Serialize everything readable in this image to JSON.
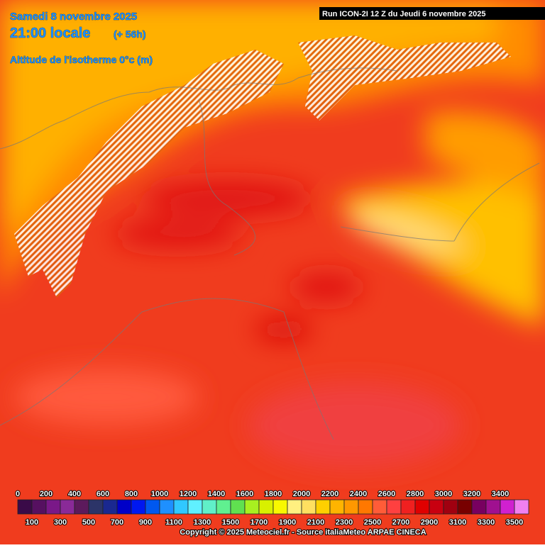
{
  "header": {
    "date": "Samedi 8 novembre 2025",
    "time": "21:00 locale",
    "lead": "(+ 56h)",
    "parameter": "Altitude de l'isotherme 0°c (m)"
  },
  "run": "Run ICON-2I 12 Z du Jeudi 6 novembre 2025",
  "legend": {
    "labels_top": [
      0,
      200,
      400,
      600,
      800,
      1000,
      1200,
      1400,
      1600,
      1800,
      2000,
      2200,
      2400,
      2600,
      2800,
      3000,
      3200,
      3400
    ],
    "labels_bottom": [
      100,
      300,
      500,
      700,
      900,
      1100,
      1300,
      1500,
      1700,
      1900,
      2100,
      2300,
      2500,
      2700,
      2900,
      3100,
      3300,
      3500
    ],
    "colors": [
      "#3a0a48",
      "#561060",
      "#7a1888",
      "#8a2a98",
      "#5c1a5c",
      "#2c3468",
      "#1a2890",
      "#0000c8",
      "#0018f0",
      "#0058f0",
      "#1e90ff",
      "#30c8ff",
      "#60f0ff",
      "#60f0c8",
      "#60f090",
      "#60e050",
      "#a8f020",
      "#d8f000",
      "#f8f800",
      "#fff080",
      "#ffe060",
      "#ffd000",
      "#ffb400",
      "#ff9800",
      "#ff7800",
      "#ff5c38",
      "#ff4040",
      "#f02020",
      "#e00000",
      "#c80010",
      "#a00010",
      "#780000",
      "#780060",
      "#a01090",
      "#d020d0",
      "#f080f0"
    ]
  },
  "copyright": "Copyright © 2025 Meteociel.fr - Source italiaMeteo ARPAE CINECA"
}
